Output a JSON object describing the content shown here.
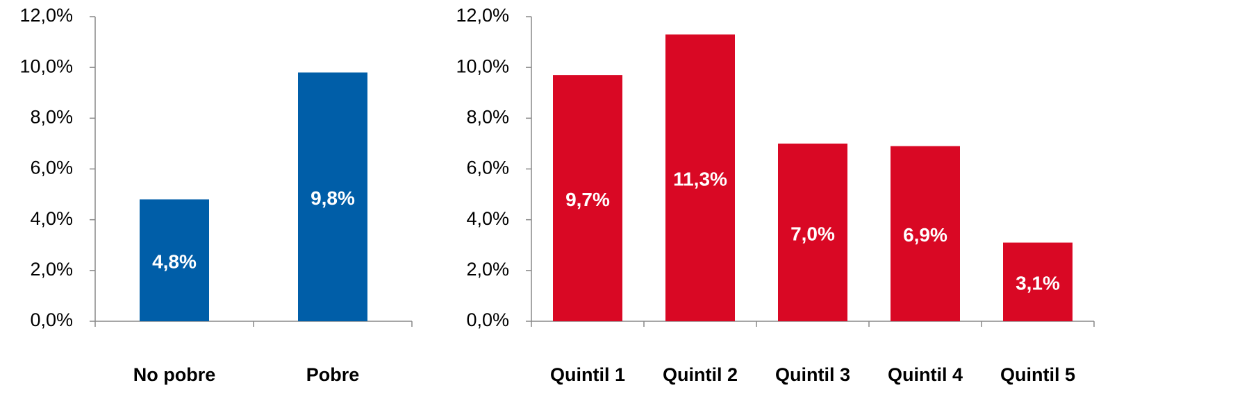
{
  "chart_data": [
    {
      "type": "bar",
      "categories": [
        "No pobre",
        "Pobre"
      ],
      "values": [
        4.8,
        9.8
      ],
      "value_labels": [
        "4,8%",
        "9,8%"
      ],
      "color": "#005ea8",
      "ylim": [
        0,
        12
      ],
      "yticks": [
        {
          "value": 0,
          "label": "0,0%"
        },
        {
          "value": 2,
          "label": "2,0%"
        },
        {
          "value": 4,
          "label": "4,0%"
        },
        {
          "value": 6,
          "label": "6,0%"
        },
        {
          "value": 8,
          "label": "8,0%"
        },
        {
          "value": 10,
          "label": "10,0%"
        },
        {
          "value": 12,
          "label": "12,0%"
        }
      ]
    },
    {
      "type": "bar",
      "categories": [
        "Quintil 1",
        "Quintil 2",
        "Quintil 3",
        "Quintil 4",
        "Quintil 5"
      ],
      "values": [
        9.7,
        11.3,
        7.0,
        6.9,
        3.1
      ],
      "value_labels": [
        "9,7%",
        "11,3%",
        "7,0%",
        "6,9%",
        "3,1%"
      ],
      "color": "#d90824",
      "ylim": [
        0,
        12
      ],
      "yticks": [
        {
          "value": 0,
          "label": "0,0%"
        },
        {
          "value": 2,
          "label": "2,0%"
        },
        {
          "value": 4,
          "label": "4,0%"
        },
        {
          "value": 6,
          "label": "6,0%"
        },
        {
          "value": 8,
          "label": "8,0%"
        },
        {
          "value": 10,
          "label": "10,0%"
        },
        {
          "value": 12,
          "label": "12,0%"
        }
      ]
    }
  ]
}
